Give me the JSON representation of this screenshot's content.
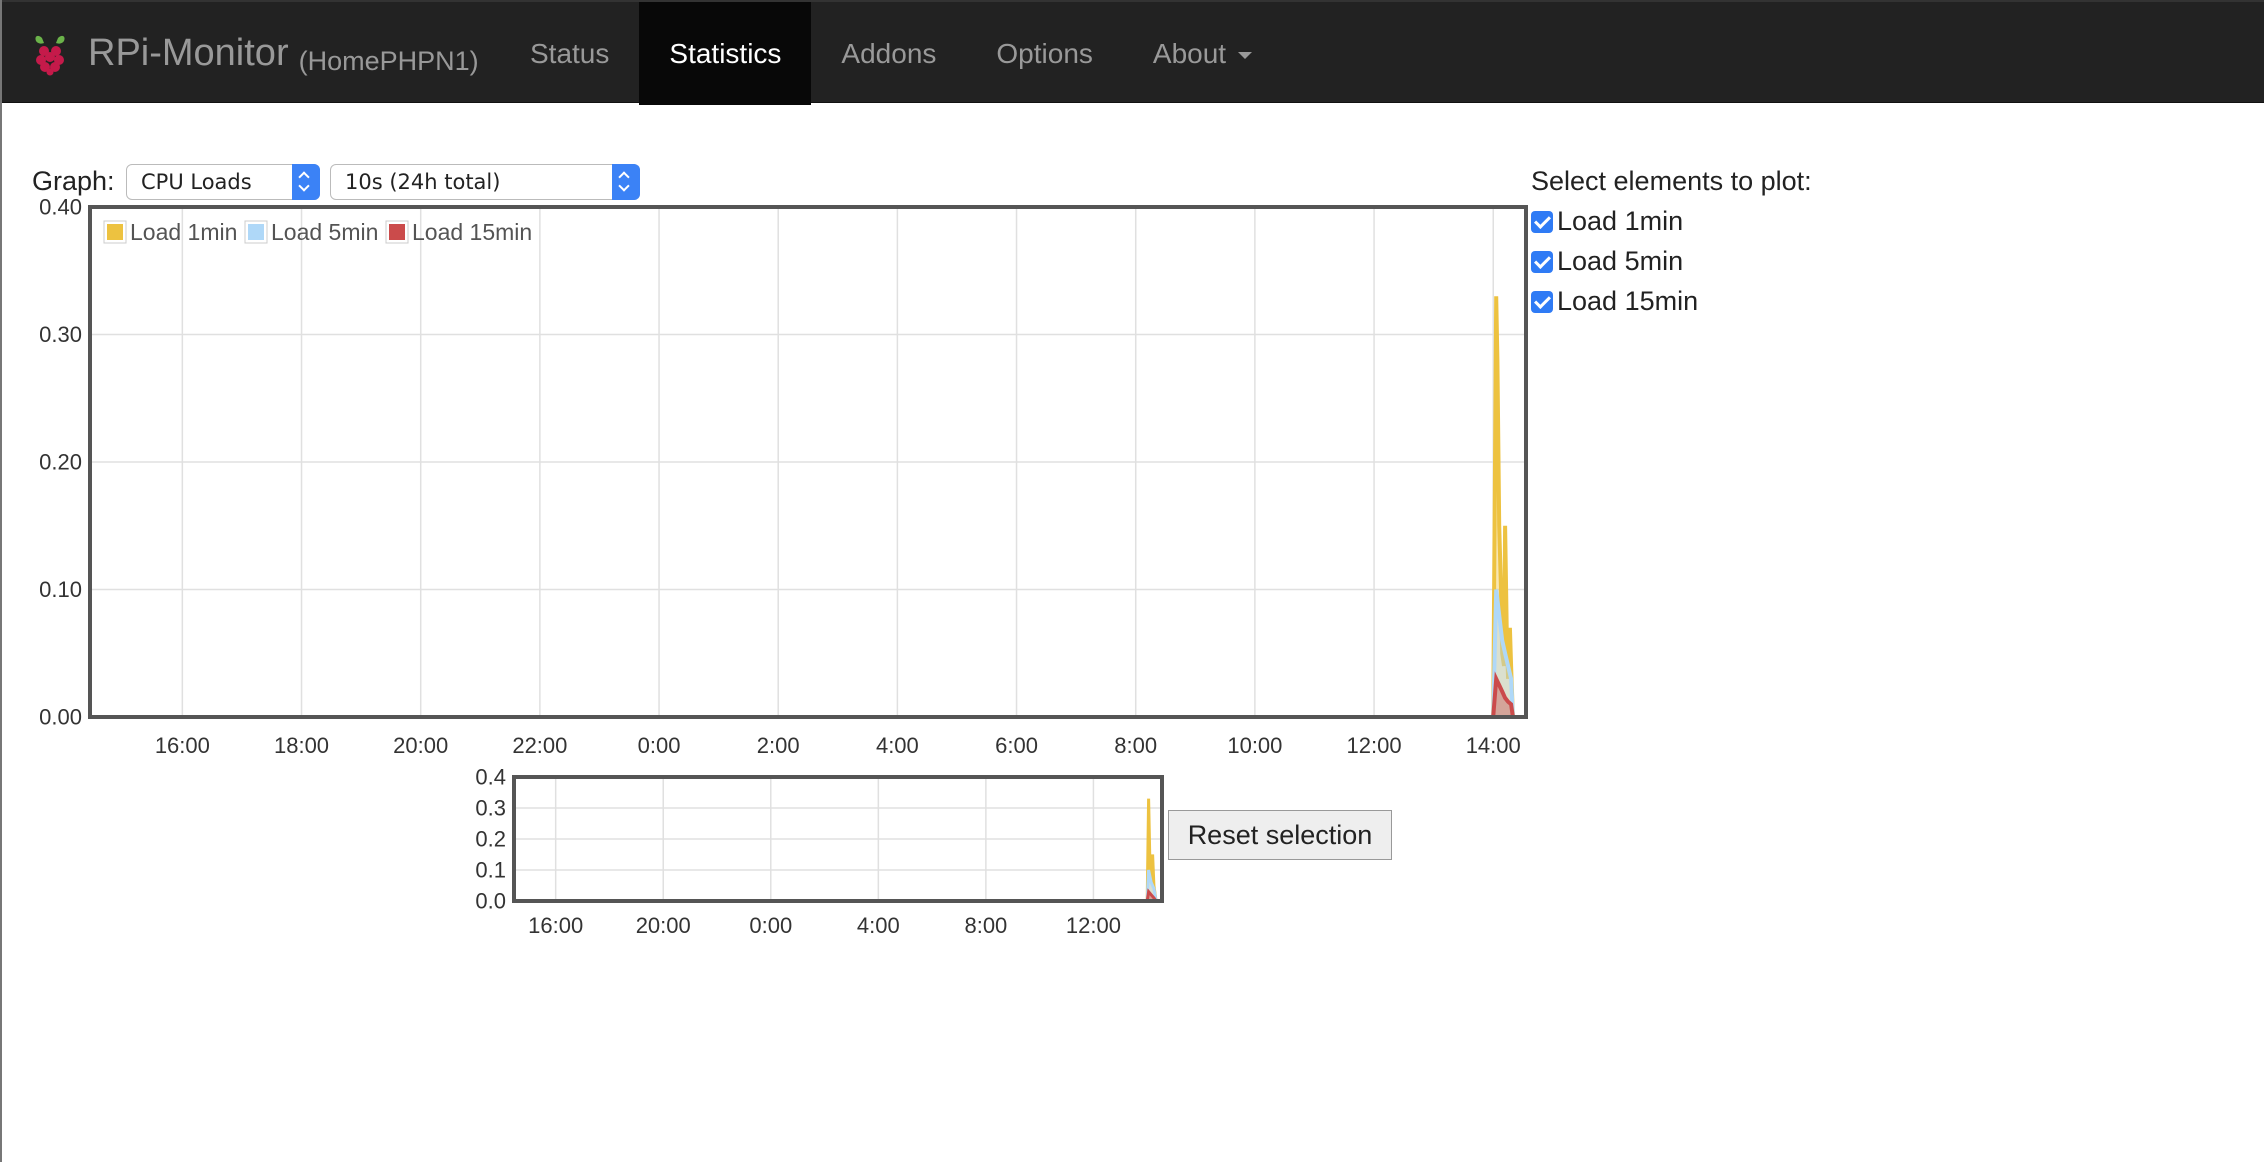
{
  "header": {
    "app_name": "RPi-Monitor",
    "host": "(HomePHPN1)",
    "nav": [
      {
        "label": "Status",
        "active": false
      },
      {
        "label": "Statistics",
        "active": true
      },
      {
        "label": "Addons",
        "active": false
      },
      {
        "label": "Options",
        "active": false
      },
      {
        "label": "About",
        "active": false,
        "dropdown": true
      }
    ]
  },
  "controls": {
    "graph_label": "Graph:",
    "graph_select": "CPU Loads",
    "range_select": "10s (24h total)",
    "select_title": "Select elements to plot:",
    "elements": [
      {
        "label": "Load 1min",
        "checked": true
      },
      {
        "label": "Load 5min",
        "checked": true
      },
      {
        "label": "Load 15min",
        "checked": true
      }
    ],
    "reset_label": "Reset selection"
  },
  "colors": {
    "load1": "#edc240",
    "load5": "#afd8f8",
    "load15": "#cb4b4b",
    "navbar": "#222222",
    "checkbox": "#2f7bf5"
  },
  "chart_data": [
    {
      "type": "line",
      "title": "",
      "ylim": [
        0,
        0.4
      ],
      "yticks": [
        "0.40",
        "0.30",
        "0.20",
        "0.10",
        "0.00"
      ],
      "xticks": [
        "16:00",
        "18:00",
        "20:00",
        "22:00",
        "0:00",
        "2:00",
        "4:00",
        "6:00",
        "8:00",
        "10:00",
        "12:00",
        "14:00"
      ],
      "legend": "top-left",
      "grid": true,
      "series": [
        {
          "name": "Load 1min",
          "color": "#edc240",
          "x": [
            14.0,
            14.05,
            14.07,
            14.1,
            14.13,
            14.15,
            14.18,
            14.2,
            14.23,
            14.25,
            14.28,
            14.3,
            14.33
          ],
          "y": [
            0.0,
            0.33,
            0.28,
            0.15,
            0.1,
            0.05,
            0.04,
            0.15,
            0.06,
            0.03,
            0.07,
            0.04,
            0.0
          ]
        },
        {
          "name": "Load 5min",
          "color": "#afd8f8",
          "x": [
            14.0,
            14.05,
            14.1,
            14.15,
            14.2,
            14.25,
            14.3,
            14.33
          ],
          "y": [
            0.0,
            0.1,
            0.08,
            0.06,
            0.05,
            0.04,
            0.03,
            0.0
          ]
        },
        {
          "name": "Load 15min",
          "color": "#cb4b4b",
          "x": [
            14.0,
            14.05,
            14.1,
            14.15,
            14.2,
            14.25,
            14.3,
            14.33
          ],
          "y": [
            0.0,
            0.03,
            0.025,
            0.02,
            0.015,
            0.012,
            0.01,
            0.0
          ]
        }
      ]
    },
    {
      "type": "line",
      "title": "",
      "ylim": [
        0,
        0.4
      ],
      "yticks": [
        "0.4",
        "0.3",
        "0.2",
        "0.1",
        "0.0"
      ],
      "xticks": [
        "16:00",
        "20:00",
        "0:00",
        "4:00",
        "8:00",
        "12:00"
      ],
      "grid": true,
      "series": [
        {
          "name": "Load 1min",
          "color": "#edc240",
          "x": [
            14.0,
            14.05,
            14.1,
            14.15,
            14.2,
            14.25,
            14.33
          ],
          "y": [
            0.0,
            0.33,
            0.12,
            0.06,
            0.15,
            0.05,
            0.0
          ]
        },
        {
          "name": "Load 5min",
          "color": "#afd8f8",
          "x": [
            14.0,
            14.05,
            14.15,
            14.25,
            14.33
          ],
          "y": [
            0.0,
            0.1,
            0.06,
            0.04,
            0.0
          ]
        },
        {
          "name": "Load 15min",
          "color": "#cb4b4b",
          "x": [
            14.0,
            14.05,
            14.15,
            14.25,
            14.33
          ],
          "y": [
            0.0,
            0.03,
            0.02,
            0.01,
            0.0
          ]
        }
      ]
    }
  ]
}
